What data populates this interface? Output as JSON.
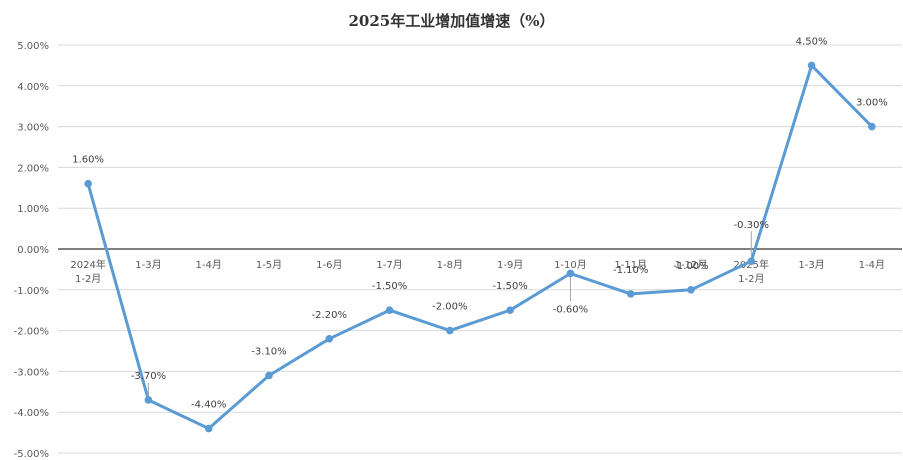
{
  "chart_data": {
    "type": "line",
    "title": "2025年工业增加值增速（%）",
    "categories": [
      [
        "2024年",
        "1-2月"
      ],
      [
        "1-3月"
      ],
      [
        "1-4月"
      ],
      [
        "1-5月"
      ],
      [
        "1-6月"
      ],
      [
        "1-7月"
      ],
      [
        "1-8月"
      ],
      [
        "1-9月"
      ],
      [
        "1-10月"
      ],
      [
        "1-11月"
      ],
      [
        "1-12月"
      ],
      [
        "2025年",
        "1-2月"
      ],
      [
        "1-3月"
      ],
      [
        "1-4月"
      ]
    ],
    "series": [
      {
        "values": [
          1.6,
          -3.7,
          -4.4,
          -3.1,
          -2.2,
          -1.5,
          -2.0,
          -1.5,
          -0.6,
          -1.1,
          -1.0,
          -0.3,
          4.5,
          3.0
        ],
        "labels": [
          "1.60%",
          "-3.70%",
          "-4.40%",
          "-3.10%",
          "-2.20%",
          "-1.50%",
          "-2.00%",
          "-1.50%",
          "-0.60%",
          "-1.10%",
          "-1.00%",
          "-0.30%",
          "4.50%",
          "3.00%"
        ],
        "color": "#5b9bd5"
      }
    ],
    "yticks": [
      "5.00%",
      "4.00%",
      "3.00%",
      "2.00%",
      "1.00%",
      "0.00%",
      "-1.00%",
      "-2.00%",
      "-3.00%",
      "-4.00%",
      "-5.00%"
    ],
    "ylim": [
      -5,
      5
    ],
    "grid": true,
    "legend": "none",
    "grid_color": "#d9d9d9",
    "axis_color": "#000000"
  }
}
